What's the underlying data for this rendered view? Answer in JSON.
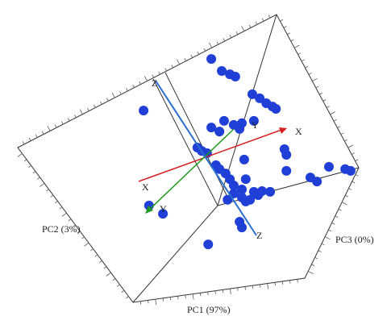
{
  "chart_data": {
    "type": "scatter3d",
    "axis_labels": {
      "pc1": "PC1 (97%)",
      "pc2": "PC2 (3%)",
      "pc3": "PC3 (0%)"
    },
    "arrow_labels": {
      "x": "X",
      "y": "Y",
      "z": "Z"
    },
    "xlim": [
      0,
      100
    ],
    "ylim": [
      0,
      100
    ],
    "color": "#1f3fd6",
    "x": [
      54.6,
      57.3,
      59.4,
      60.8,
      37.1,
      65.2,
      67.1,
      68.8,
      70.4,
      71.3,
      57.9,
      60.4,
      61.9,
      54.6,
      56.7,
      62.5,
      65.6,
      51.0,
      52.1,
      53.5,
      55.8,
      56.7,
      58.3,
      73.5,
      74.0,
      63.1,
      59.4,
      60.4,
      63.5,
      62.5,
      65.6,
      67.7,
      69.8,
      60.4,
      62.5,
      64.6,
      66.7,
      74.0,
      80.2,
      81.9,
      85.0,
      89.2,
      90.6,
      38.5,
      42.1,
      61.9,
      62.5,
      53.8,
      63.5,
      58.8
    ],
    "values": [
      82.3,
      78.7,
      77.7,
      77.0,
      66.8,
      71.7,
      70.5,
      69.0,
      68.0,
      67.3,
      63.7,
      62.5,
      61.3,
      61.7,
      60.5,
      63.0,
      63.7,
      55.7,
      54.7,
      54.0,
      50.4,
      49.2,
      47.9,
      55.2,
      53.5,
      52.1,
      46.2,
      44.3,
      46.2,
      43.1,
      42.4,
      42.6,
      42.4,
      41.9,
      40.7,
      40.0,
      41.4,
      48.7,
      46.7,
      45.5,
      49.9,
      49.2,
      48.7,
      38.3,
      35.8,
      33.4,
      31.7,
      26.6,
      39.5,
      40.0
    ]
  }
}
